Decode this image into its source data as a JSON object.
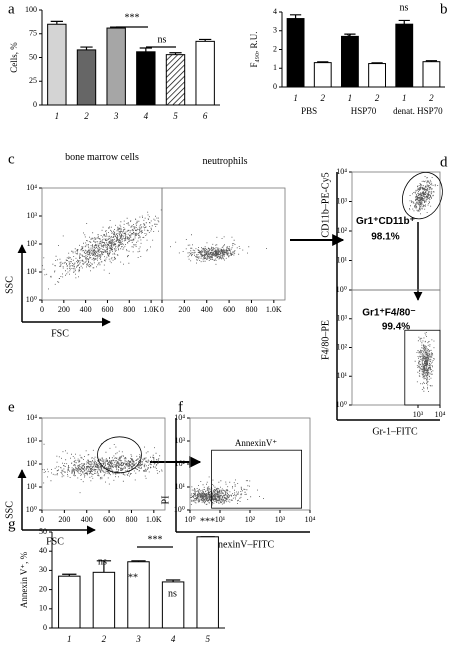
{
  "chart_data": [
    {
      "type": "bar",
      "panel": "a",
      "ylabel": "Cells, %",
      "categories": [
        "1",
        "2",
        "3",
        "4",
        "5",
        "6"
      ],
      "values": [
        85,
        58,
        81,
        56,
        53,
        67
      ],
      "errors": [
        3,
        3,
        1,
        4,
        2,
        2
      ],
      "colors": [
        "#d4d4d4",
        "#666666",
        "#a6a6a6",
        "#000000",
        "#ffffff",
        "#ffffff"
      ],
      "hatched": [
        false,
        false,
        false,
        false,
        true,
        false
      ],
      "ylim": [
        0,
        100
      ],
      "yticks": [
        0,
        25,
        50,
        75,
        100
      ],
      "annotations": [
        "***",
        "ns"
      ]
    },
    {
      "type": "bar",
      "panel": "b",
      "ylabel": "F₄₉₀, R.U.",
      "categories": [
        "1",
        "2",
        "1",
        "2",
        "1",
        "2"
      ],
      "groups": [
        "PBS",
        "HSP70",
        "denat. HSP70"
      ],
      "values": [
        3.65,
        1.3,
        2.7,
        1.25,
        3.35,
        1.35
      ],
      "errors": [
        0.2,
        0.04,
        0.12,
        0.04,
        0.2,
        0.05
      ],
      "colors": [
        "#000000",
        "#ffffff",
        "#000000",
        "#ffffff",
        "#000000",
        "#ffffff"
      ],
      "ylim": [
        0,
        4
      ],
      "yticks": [
        0,
        1,
        2,
        3,
        4
      ],
      "annotations": [
        "*",
        "ns"
      ]
    },
    {
      "type": "scatter",
      "panel": "c",
      "title": "bone marrow cells",
      "ylabel": "SSC",
      "xlabel": "FSC",
      "xlim": [
        0,
        1100
      ],
      "xticks": [
        0,
        200,
        400,
        600,
        800,
        {
          "value": 1000,
          "label": "1.0K"
        }
      ],
      "yscale": "log",
      "ylim": [
        1,
        10000
      ],
      "yticks": [
        {
          "value": 1,
          "label": "10⁰"
        },
        {
          "value": 10,
          "label": "10¹"
        },
        {
          "value": 100,
          "label": "10²"
        },
        {
          "value": 1000,
          "label": "10³"
        },
        {
          "value": 10000,
          "label": "10⁴"
        }
      ]
    },
    {
      "type": "scatter",
      "title": "neutrophils",
      "xlim": [
        0,
        1100
      ],
      "xticks": [
        0,
        200,
        400,
        600,
        800,
        {
          "value": 1000,
          "label": "1.0K"
        }
      ],
      "yscale": "log",
      "ylim": [
        1,
        10000
      ]
    },
    {
      "type": "scatter",
      "panel": "d",
      "ylabel": "CD11b–PE-Cy5",
      "xscale": "log",
      "xlim": [
        1,
        10000
      ],
      "yscale": "log",
      "ylim": [
        1,
        10000
      ],
      "yticks": [
        {
          "value": 1,
          "label": "10⁰"
        },
        {
          "value": 10,
          "label": "10¹"
        },
        {
          "value": 100,
          "label": "10²"
        },
        {
          "value": 1000,
          "label": "10³"
        },
        {
          "value": 10000,
          "label": "10⁴"
        }
      ],
      "annotations": [
        "Gr1⁺CD11b⁺",
        "98.1%"
      ]
    },
    {
      "type": "scatter",
      "ylabel": "F4/80–PE",
      "xlabel": "Gr-1–FITC",
      "xscale": "log",
      "xlim": [
        1,
        10000
      ],
      "yscale": "log",
      "ylim": [
        1,
        10000
      ],
      "xticks": [
        {
          "value": 1000,
          "label": "10³"
        },
        {
          "value": 10000,
          "label": "10⁴"
        }
      ],
      "yticks": [
        {
          "value": 1,
          "label": "10⁰"
        },
        {
          "value": 10,
          "label": "10¹"
        },
        {
          "value": 100,
          "label": "10²"
        },
        {
          "value": 1000,
          "label": "10³"
        }
      ],
      "annotations": [
        "Gr1⁺F4/80⁻",
        "99.4%"
      ]
    },
    {
      "type": "scatter",
      "panel": "e",
      "ylabel": "SSC",
      "xlabel": "FSC",
      "xlim": [
        0,
        1100
      ],
      "xticks": [
        0,
        200,
        400,
        600,
        800,
        {
          "value": 1000,
          "label": "1.0K"
        }
      ],
      "yscale": "log",
      "ylim": [
        1,
        10000
      ],
      "yticks": [
        {
          "value": 1,
          "label": "10⁰"
        },
        {
          "value": 10,
          "label": "10¹"
        },
        {
          "value": 100,
          "label": "10²"
        },
        {
          "value": 1000,
          "label": "10³"
        },
        {
          "value": 10000,
          "label": "10⁴"
        }
      ]
    },
    {
      "type": "scatter",
      "panel": "f",
      "ylabel": "PI",
      "xlabel": "AnnexinV–FITC",
      "xscale": "log",
      "xlim": [
        1,
        10000
      ],
      "yscale": "log",
      "ylim": [
        1,
        10000
      ],
      "xticks": [
        {
          "value": 1,
          "label": "10⁰"
        },
        {
          "value": 10,
          "label": "10¹"
        },
        {
          "value": 100,
          "label": "10²"
        },
        {
          "value": 1000,
          "label": "10³"
        },
        {
          "value": 10000,
          "label": "10⁴"
        }
      ],
      "yticks": [
        {
          "value": 1,
          "label": "10⁰"
        },
        {
          "value": 10,
          "label": "10¹"
        },
        {
          "value": 100,
          "label": "10²"
        },
        {
          "value": 1000,
          "label": "10³"
        },
        {
          "value": 10000,
          "label": "10⁴"
        }
      ],
      "annotations": [
        "AnnexinV⁺"
      ]
    },
    {
      "type": "bar",
      "panel": "g",
      "ylabel": "Annexin V⁺, %",
      "categories": [
        "1",
        "2",
        "3",
        "4",
        "5"
      ],
      "values": [
        27,
        29,
        34.5,
        24,
        47.5
      ],
      "errors": [
        1,
        6,
        0.5,
        1,
        0
      ],
      "colors": [
        "#ffffff",
        "#ffffff",
        "#ffffff",
        "#ffffff",
        "#ffffff"
      ],
      "ylim": [
        0,
        50
      ],
      "yticks": [
        0,
        10,
        20,
        30,
        40,
        50
      ],
      "annotations": [
        "ns",
        "**",
        "***",
        "ns",
        "***"
      ]
    }
  ]
}
